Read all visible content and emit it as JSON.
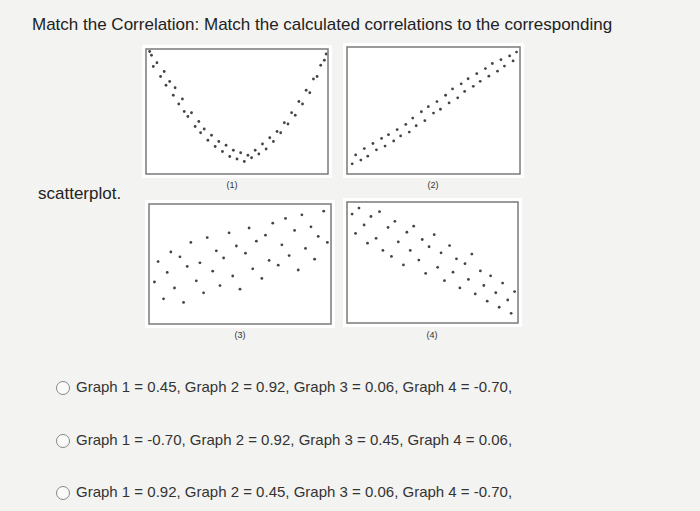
{
  "question": [
    "Match the Correlation: Match the calculated correlations to the corresponding",
    "scatterplot."
  ],
  "chart_data": [
    {
      "type": "scatter",
      "caption": "(1)",
      "color": "#444444",
      "marker": "circle",
      "grid": false,
      "tick_labels": false,
      "xlim": [
        0,
        10
      ],
      "ylim": [
        0,
        10
      ],
      "xticks": [],
      "yticks": [],
      "x": [
        0.2,
        0.3,
        0.4,
        0.6,
        0.8,
        1.0,
        1.1,
        1.3,
        1.5,
        1.6,
        1.8,
        2.0,
        2.1,
        2.3,
        2.5,
        2.7,
        2.9,
        3.0,
        3.2,
        3.4,
        3.6,
        3.8,
        4.0,
        4.2,
        4.4,
        4.6,
        4.8,
        5.0,
        5.2,
        5.4,
        5.6,
        5.8,
        6.0,
        6.2,
        6.4,
        6.6,
        6.8,
        7.0,
        7.2,
        7.4,
        7.6,
        7.8,
        8.0,
        8.2,
        8.4,
        8.6,
        8.8,
        9.0,
        9.2,
        9.4,
        9.6,
        9.8,
        9.9
      ],
      "values": [
        9.8,
        9.5,
        8.6,
        8.9,
        7.8,
        8.2,
        7.1,
        7.4,
        6.3,
        6.9,
        5.6,
        6.0,
        5.0,
        4.6,
        4.9,
        3.8,
        4.2,
        3.3,
        3.6,
        2.7,
        3.1,
        2.2,
        2.6,
        1.8,
        2.3,
        1.4,
        1.9,
        1.2,
        1.7,
        1.0,
        1.5,
        1.3,
        1.9,
        1.6,
        2.4,
        2.0,
        2.9,
        2.6,
        3.4,
        3.3,
        4.1,
        4.0,
        4.9,
        4.7,
        5.8,
        5.6,
        6.7,
        6.5,
        7.6,
        7.8,
        8.7,
        9.1,
        9.6
      ]
    },
    {
      "type": "scatter",
      "caption": "(2)",
      "color": "#444444",
      "marker": "circle",
      "grid": false,
      "tick_labels": false,
      "xlim": [
        0,
        10
      ],
      "ylim": [
        0,
        10
      ],
      "xticks": [],
      "yticks": [],
      "x": [
        0.3,
        0.5,
        0.8,
        1.0,
        1.2,
        1.5,
        1.7,
        2.0,
        2.2,
        2.4,
        2.7,
        2.9,
        3.1,
        3.4,
        3.6,
        3.8,
        4.0,
        4.3,
        4.5,
        4.7,
        5.0,
        5.2,
        5.4,
        5.7,
        5.9,
        6.1,
        6.4,
        6.6,
        6.8,
        7.0,
        7.3,
        7.5,
        7.7,
        8.0,
        8.2,
        8.4,
        8.7,
        8.9,
        9.1,
        9.4,
        9.6,
        9.8
      ],
      "values": [
        0.8,
        1.5,
        1.1,
        2.0,
        1.4,
        2.4,
        1.9,
        2.8,
        2.2,
        3.1,
        2.6,
        3.5,
        3.0,
        3.9,
        3.3,
        4.4,
        3.8,
        4.9,
        4.2,
        5.3,
        4.8,
        5.7,
        5.1,
        6.2,
        5.6,
        6.7,
        6.0,
        7.1,
        6.5,
        7.5,
        6.9,
        7.9,
        7.3,
        8.3,
        7.7,
        8.7,
        8.1,
        9.0,
        8.5,
        9.3,
        8.9,
        9.6
      ]
    },
    {
      "type": "scatter",
      "caption": "(3)",
      "color": "#444444",
      "marker": "circle",
      "grid": false,
      "tick_labels": false,
      "xlim": [
        0,
        10
      ],
      "ylim": [
        0,
        10
      ],
      "xticks": [],
      "yticks": [],
      "x": [
        0.3,
        0.5,
        0.8,
        1.0,
        1.2,
        1.4,
        1.7,
        1.9,
        2.1,
        2.3,
        2.6,
        2.8,
        3.0,
        3.2,
        3.5,
        3.7,
        3.9,
        4.1,
        4.4,
        4.6,
        4.8,
        5.0,
        5.3,
        5.5,
        5.7,
        5.9,
        6.2,
        6.4,
        6.6,
        6.8,
        7.1,
        7.3,
        7.5,
        7.7,
        8.0,
        8.2,
        8.4,
        8.6,
        8.9,
        9.1,
        9.3,
        9.6,
        9.8
      ],
      "values": [
        3.5,
        5.2,
        2.1,
        4.3,
        6.0,
        3.0,
        5.6,
        1.8,
        4.8,
        6.8,
        3.6,
        5.1,
        2.6,
        7.2,
        4.4,
        6.1,
        3.2,
        5.5,
        7.6,
        4.0,
        6.5,
        2.9,
        5.9,
        8.0,
        4.6,
        6.9,
        3.8,
        7.4,
        5.3,
        8.4,
        4.9,
        6.6,
        8.8,
        5.7,
        7.8,
        4.5,
        9.1,
        6.3,
        8.1,
        5.4,
        7.3,
        9.4,
        6.8
      ]
    },
    {
      "type": "scatter",
      "caption": "(4)",
      "color": "#444444",
      "marker": "circle",
      "grid": false,
      "tick_labels": false,
      "xlim": [
        0,
        10
      ],
      "ylim": [
        0,
        10
      ],
      "xticks": [],
      "yticks": [],
      "x": [
        0.3,
        0.5,
        0.7,
        1.0,
        1.2,
        1.4,
        1.7,
        1.9,
        2.1,
        2.4,
        2.6,
        2.8,
        3.0,
        3.3,
        3.5,
        3.7,
        3.9,
        4.2,
        4.4,
        4.6,
        4.8,
        5.1,
        5.3,
        5.5,
        5.7,
        6.0,
        6.2,
        6.4,
        6.6,
        6.9,
        7.1,
        7.3,
        7.5,
        7.8,
        8.0,
        8.2,
        8.4,
        8.7,
        8.9,
        9.1,
        9.4,
        9.6,
        9.8
      ],
      "values": [
        9.0,
        7.4,
        9.5,
        8.1,
        6.6,
        8.8,
        7.0,
        9.2,
        6.0,
        7.9,
        5.5,
        8.4,
        6.7,
        4.8,
        7.5,
        6.0,
        8.0,
        5.2,
        6.9,
        4.1,
        6.3,
        7.3,
        4.6,
        5.8,
        3.5,
        6.4,
        4.2,
        5.3,
        2.9,
        4.9,
        3.6,
        5.7,
        2.4,
        4.3,
        3.1,
        1.8,
        3.9,
        2.5,
        1.3,
        3.3,
        1.9,
        0.8,
        2.6
      ]
    }
  ],
  "options": [
    "Graph 1 = 0.45, Graph 2 = 0.92, Graph 3 = 0.06, Graph 4 = -0.70,",
    "Graph 1 = -0.70, Graph 2 = 0.92, Graph 3 = 0.45, Graph 4 = 0.06,",
    "Graph 1 = 0.92, Graph 2 = 0.45, Graph 3 = 0.06, Graph 4 = -0.70,"
  ]
}
